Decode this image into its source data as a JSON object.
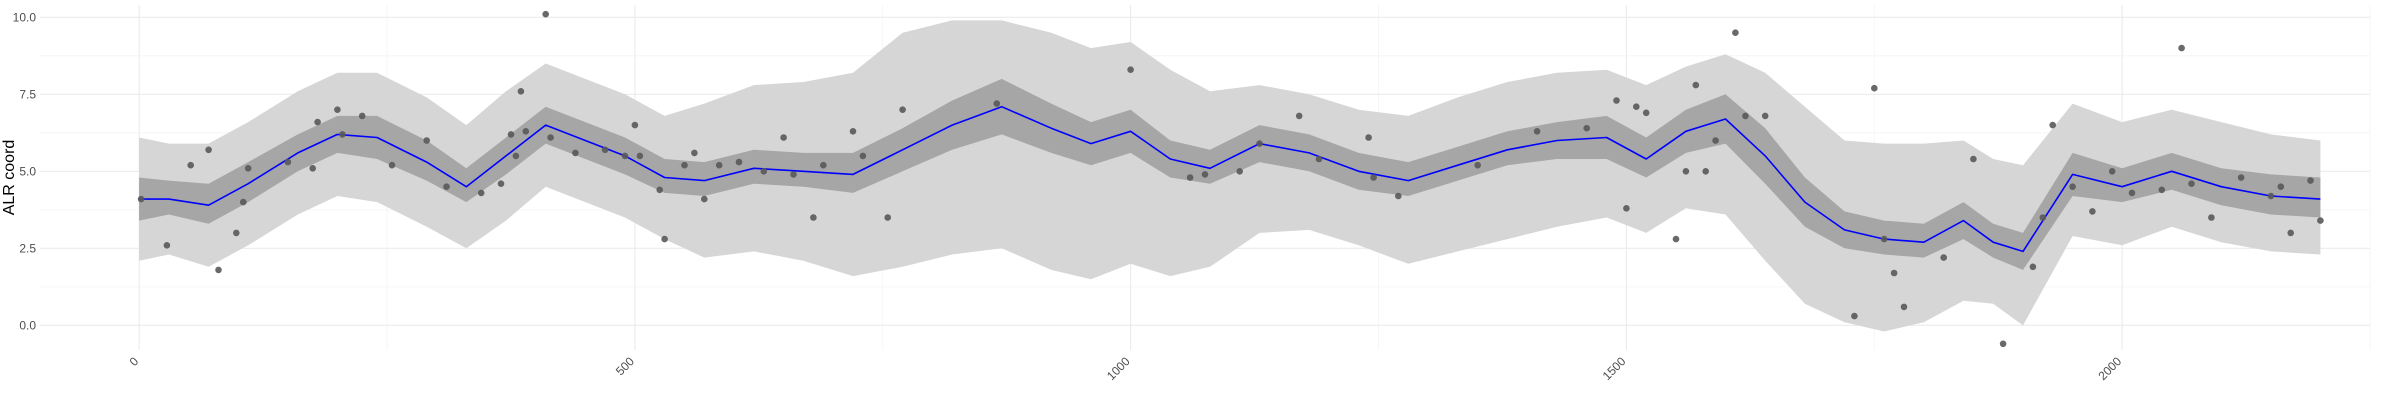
{
  "chart_data": {
    "type": "line",
    "title": "",
    "xlabel": "",
    "ylabel": "ALR coord",
    "xlim": [
      -100,
      2250
    ],
    "ylim": [
      -0.8,
      10.4
    ],
    "x_ticks": [
      0,
      500,
      1000,
      1500,
      2000
    ],
    "x_tick_labels": [
      "0",
      "500",
      "1000",
      "1500",
      "2000"
    ],
    "y_ticks": [
      0,
      2.5,
      5,
      7.5,
      10
    ],
    "y_tick_labels": [
      "0.0",
      "2.5",
      "5.0",
      "7.5",
      "10.0"
    ],
    "grid": true,
    "legend": "none",
    "colors": {
      "line": "#0000ff",
      "inner_band": "#a6a6a6",
      "outer_band": "#d6d6d6",
      "points": "#595959"
    },
    "series": [
      {
        "type": "line",
        "x": [
          0,
          30,
          70,
          110,
          160,
          200,
          240,
          290,
          330,
          370,
          410,
          450,
          490,
          530,
          570,
          620,
          670,
          720,
          770,
          820,
          870,
          920,
          960,
          1000,
          1040,
          1080,
          1130,
          1180,
          1230,
          1280,
          1330,
          1380,
          1430,
          1480,
          1520,
          1560,
          1600,
          1640,
          1680,
          1720,
          1760,
          1800,
          1840,
          1870,
          1900,
          1950,
          2000,
          2050,
          2100,
          2150,
          2200
        ],
        "y": [
          4.1,
          4.1,
          3.9,
          4.6,
          5.6,
          6.2,
          6.1,
          5.3,
          4.5,
          5.5,
          6.5,
          6.0,
          5.5,
          4.8,
          4.7,
          5.1,
          5.0,
          4.9,
          5.7,
          6.5,
          7.1,
          6.4,
          5.9,
          6.3,
          5.4,
          5.1,
          5.9,
          5.6,
          5.0,
          4.7,
          5.2,
          5.7,
          6.0,
          6.1,
          5.4,
          6.3,
          6.7,
          5.5,
          4.0,
          3.1,
          2.8,
          2.7,
          3.4,
          2.7,
          2.4,
          4.9,
          4.5,
          5.0,
          4.5,
          4.2,
          4.1
        ]
      },
      {
        "type": "band",
        "name": "",
        "x": [
          0,
          30,
          70,
          110,
          160,
          200,
          240,
          290,
          330,
          370,
          410,
          450,
          490,
          530,
          570,
          620,
          670,
          720,
          770,
          820,
          870,
          920,
          960,
          1000,
          1040,
          1080,
          1130,
          1180,
          1230,
          1280,
          1330,
          1380,
          1430,
          1480,
          1520,
          1560,
          1600,
          1640,
          1680,
          1720,
          1760,
          1800,
          1840,
          1870,
          1900,
          1950,
          2000,
          2050,
          2100,
          2150,
          2200
        ],
        "lower": [
          3.4,
          3.6,
          3.3,
          4.0,
          5.0,
          5.6,
          5.4,
          4.7,
          4.0,
          4.9,
          5.9,
          5.4,
          4.9,
          4.3,
          4.2,
          4.6,
          4.5,
          4.3,
          5.0,
          5.7,
          6.2,
          5.6,
          5.2,
          5.6,
          4.8,
          4.6,
          5.3,
          5.0,
          4.4,
          4.2,
          4.7,
          5.2,
          5.4,
          5.4,
          4.8,
          5.6,
          5.9,
          4.6,
          3.2,
          2.5,
          2.3,
          2.2,
          2.8,
          2.2,
          1.8,
          4.2,
          4.0,
          4.4,
          3.9,
          3.6,
          3.5
        ],
        "upper": [
          4.8,
          4.7,
          4.6,
          5.3,
          6.2,
          6.8,
          6.8,
          6.0,
          5.1,
          6.1,
          7.1,
          6.6,
          6.1,
          5.4,
          5.3,
          5.7,
          5.6,
          5.6,
          6.4,
          7.3,
          8.0,
          7.2,
          6.6,
          7.0,
          6.0,
          5.7,
          6.5,
          6.2,
          5.6,
          5.3,
          5.8,
          6.3,
          6.6,
          6.8,
          6.1,
          7.0,
          7.5,
          6.4,
          4.8,
          3.7,
          3.4,
          3.3,
          4.0,
          3.3,
          3.0,
          5.6,
          5.1,
          5.6,
          5.1,
          4.9,
          4.8
        ]
      },
      {
        "type": "band",
        "name": "",
        "x": [
          0,
          30,
          70,
          110,
          160,
          200,
          240,
          290,
          330,
          370,
          410,
          450,
          490,
          530,
          570,
          620,
          670,
          720,
          770,
          820,
          870,
          920,
          960,
          1000,
          1040,
          1080,
          1130,
          1180,
          1230,
          1280,
          1330,
          1380,
          1430,
          1480,
          1520,
          1560,
          1600,
          1640,
          1680,
          1720,
          1760,
          1800,
          1840,
          1870,
          1900,
          1950,
          2000,
          2050,
          2100,
          2150,
          2200
        ],
        "lower": [
          2.1,
          2.3,
          1.9,
          2.6,
          3.6,
          4.2,
          4.0,
          3.2,
          2.5,
          3.4,
          4.5,
          4.0,
          3.5,
          2.8,
          2.2,
          2.4,
          2.1,
          1.6,
          1.9,
          2.3,
          2.5,
          1.8,
          1.5,
          2.0,
          1.6,
          1.9,
          3.0,
          3.1,
          2.6,
          2.0,
          2.4,
          2.8,
          3.2,
          3.5,
          3.0,
          3.8,
          3.6,
          2.1,
          0.7,
          0.1,
          -0.2,
          0.1,
          0.8,
          0.7,
          0.0,
          2.9,
          2.6,
          3.2,
          2.7,
          2.4,
          2.3
        ],
        "upper": [
          6.1,
          5.9,
          5.9,
          6.6,
          7.6,
          8.2,
          8.2,
          7.4,
          6.5,
          7.6,
          8.5,
          8.0,
          7.5,
          6.8,
          7.2,
          7.8,
          7.9,
          8.2,
          9.5,
          9.9,
          9.9,
          9.5,
          9.0,
          9.2,
          8.3,
          7.6,
          7.8,
          7.5,
          7.0,
          6.8,
          7.4,
          7.9,
          8.2,
          8.3,
          7.8,
          8.4,
          8.8,
          8.2,
          7.1,
          6.0,
          5.9,
          5.9,
          6.0,
          5.4,
          5.2,
          7.2,
          6.6,
          7.0,
          6.6,
          6.2,
          6.0
        ]
      },
      {
        "type": "scatter",
        "x": [
          2,
          28,
          52,
          70,
          80,
          98,
          105,
          110,
          150,
          175,
          180,
          200,
          205,
          225,
          255,
          290,
          310,
          345,
          365,
          375,
          380,
          385,
          390,
          410,
          415,
          440,
          470,
          490,
          500,
          505,
          525,
          530,
          550,
          560,
          570,
          585,
          605,
          630,
          650,
          660,
          680,
          690,
          720,
          730,
          755,
          770,
          865,
          1000,
          1060,
          1075,
          1110,
          1130,
          1170,
          1190,
          1240,
          1245,
          1270,
          1350,
          1410,
          1460,
          1490,
          1500,
          1510,
          1520,
          1550,
          1560,
          1570,
          1580,
          1590,
          1610,
          1620,
          1640,
          1730,
          1750,
          1760,
          1770,
          1780,
          1820,
          1850,
          1880,
          1910,
          1920,
          1930,
          1950,
          1970,
          1990,
          2010,
          2040,
          2060,
          2070,
          2090,
          2120,
          2150,
          2160,
          2170,
          2190,
          2200
        ],
        "y": [
          4.1,
          2.6,
          5.2,
          5.7,
          1.8,
          3.0,
          4.0,
          5.1,
          5.3,
          5.1,
          6.6,
          7.0,
          6.2,
          6.8,
          5.2,
          6.0,
          4.5,
          4.3,
          4.6,
          6.2,
          5.5,
          7.6,
          6.3,
          10.1,
          6.1,
          5.6,
          5.7,
          5.5,
          6.5,
          5.5,
          4.4,
          2.8,
          5.2,
          5.6,
          4.1,
          5.2,
          5.3,
          5.0,
          6.1,
          4.9,
          3.5,
          5.2,
          6.3,
          5.5,
          3.5,
          7.0,
          7.2,
          8.3,
          4.8,
          4.9,
          5.0,
          5.9,
          6.8,
          5.4,
          6.1,
          4.8,
          4.2,
          5.2,
          6.3,
          6.4,
          7.3,
          3.8,
          7.1,
          6.9,
          2.8,
          5.0,
          7.8,
          5.0,
          6.0,
          9.5,
          6.8,
          6.8,
          0.3,
          7.7,
          2.8,
          1.7,
          0.6,
          2.2,
          5.4,
          -0.6,
          1.9,
          3.5,
          6.5,
          4.5,
          3.7,
          5.0,
          4.3,
          4.4,
          9.0,
          4.6,
          3.5,
          4.8,
          4.2,
          4.5,
          3.0,
          4.7,
          3.4
        ]
      }
    ]
  }
}
